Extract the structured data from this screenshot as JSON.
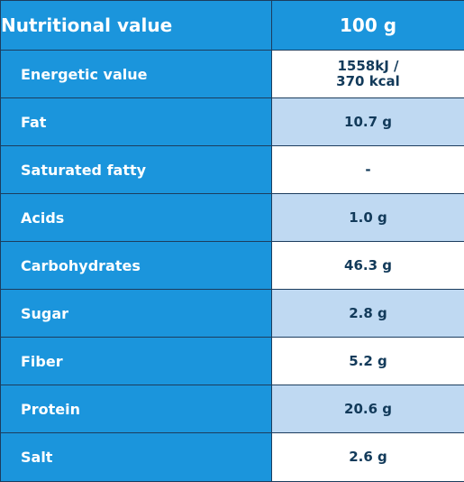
{
  "header": {
    "label": "Nutritional value",
    "value": "100 g"
  },
  "rows": [
    {
      "label": "Energetic value",
      "value": "1558kJ /\n370 kcal"
    },
    {
      "label": "Fat",
      "value": "10.7 g"
    },
    {
      "label": "Saturated fatty",
      "value": "-"
    },
    {
      "label": "Acids",
      "value": "1.0 g"
    },
    {
      "label": "Carbohydrates",
      "value": "46.3 g"
    },
    {
      "label": "Sugar",
      "value": "2.8 g"
    },
    {
      "label": "Fiber",
      "value": "5.2 g"
    },
    {
      "label": "Protein",
      "value": "20.6 g"
    },
    {
      "label": "Salt",
      "value": "2.6 g"
    }
  ],
  "colors": {
    "header_bg": "#1b95dc",
    "label_bg": "#1b95dc",
    "value_white": "#ffffff",
    "value_tint": "#bfd9f2",
    "value_text": "#123a5a",
    "border": "#1c3d5e"
  }
}
